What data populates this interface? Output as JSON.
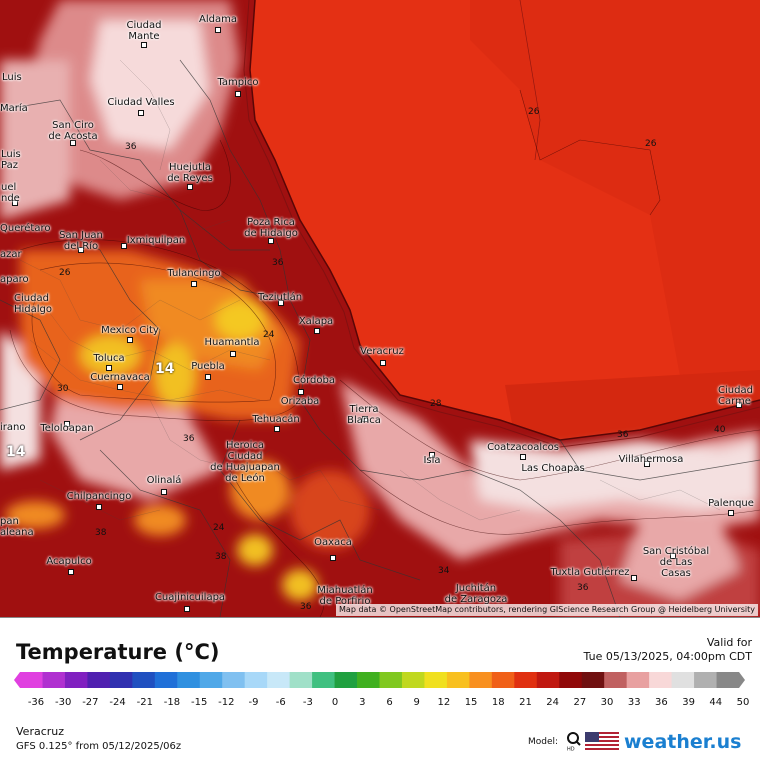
{
  "map": {
    "colors": {
      "sea": "#e43014",
      "land_hot": "#a01010",
      "land_warm": "#c82a12",
      "highland_orange": "#e8641e",
      "highland_yellow": "#f2c020",
      "cool_pink": "#e8b0b0",
      "cool_white": "#f4e4e4"
    },
    "cities": [
      {
        "name": "Ciudad\nMante"
      },
      {
        "name": "Aldama"
      },
      {
        "name": "Luis"
      },
      {
        "name": "María"
      },
      {
        "name": "Tampico"
      },
      {
        "name": "Ciudad Valles"
      },
      {
        "name": "San Ciro\nde Acosta"
      },
      {
        "name": "Luis\nPaz"
      },
      {
        "name": "Huejutla\nde Reyes"
      },
      {
        "name": "uel\nnde"
      },
      {
        "name": "Querétaro"
      },
      {
        "name": "San Juan\ndel Río"
      },
      {
        "name": "Ixmiquilpan"
      },
      {
        "name": "Poza Rica\nde Hidalgo"
      },
      {
        "name": "Tulancingo"
      },
      {
        "name": "Ciudad\nHidalgo"
      },
      {
        "name": "Teziutlán"
      },
      {
        "name": "Mexico City"
      },
      {
        "name": "Xalapa"
      },
      {
        "name": "Huamantla"
      },
      {
        "name": "Toluca"
      },
      {
        "name": "Cuernavaca"
      },
      {
        "name": "Puebla"
      },
      {
        "name": "Veracruz"
      },
      {
        "name": "Córdoba"
      },
      {
        "name": "Orizaba"
      },
      {
        "name": "Tierra\nBlanca"
      },
      {
        "name": "Tehuacán"
      },
      {
        "name": "Teloloapan"
      },
      {
        "name": "Heroica\nCiudad\nde Huajuapan\nde León"
      },
      {
        "name": "Ciudad\nCarme"
      },
      {
        "name": "Coatzacoalcos"
      },
      {
        "name": "Las Choapas"
      },
      {
        "name": "Villahermosa"
      },
      {
        "name": "Isla"
      },
      {
        "name": "Olinalá"
      },
      {
        "name": "Chilpancingo"
      },
      {
        "name": "Palenque"
      },
      {
        "name": "San Cristóbal\nde Las\nCasas"
      },
      {
        "name": "Oaxaca"
      },
      {
        "name": "Acapulco"
      },
      {
        "name": "Tuxtla Gutiérrez"
      },
      {
        "name": "Juchitán\nde Zaragoza"
      },
      {
        "name": "Miahuatlán\nde Porfirio"
      },
      {
        "name": "Cuajinicuilapa"
      },
      {
        "name": "pan\naleana"
      },
      {
        "name": "irano"
      },
      {
        "name": "azar"
      },
      {
        "name": "aparo"
      }
    ],
    "contour_labels": [
      "26",
      "26",
      "36",
      "26",
      "36",
      "24",
      "28",
      "36",
      "36",
      "40",
      "38",
      "24",
      "36",
      "34",
      "38",
      "36",
      "30"
    ],
    "big_values": [
      "14",
      "14"
    ],
    "attribution": "Map data © OpenStreetMap contributors, rendering GIScience Research Group @ Heidelberg University"
  },
  "legend": {
    "title": "Temperature (°C)",
    "valid_label": "Valid for",
    "valid_time": "Tue 05/13/2025, 04:00pm CDT",
    "ticks": [
      "-36",
      "-30",
      "-27",
      "-24",
      "-21",
      "-18",
      "-15",
      "-12",
      "-9",
      "-6",
      "-3",
      "0",
      "3",
      "6",
      "9",
      "12",
      "15",
      "18",
      "21",
      "24",
      "27",
      "30",
      "33",
      "36",
      "39",
      "44",
      "50"
    ],
    "colors": [
      "#e040e0",
      "#b030d0",
      "#8020c0",
      "#5020b0",
      "#3030b0",
      "#2050c0",
      "#2070d8",
      "#3090e0",
      "#50a8e8",
      "#80c0f0",
      "#a8d8f8",
      "#c8e8f8",
      "#a0e0c8",
      "#40c080",
      "#20a040",
      "#40b020",
      "#80c820",
      "#c0d820",
      "#f0e020",
      "#f8c020",
      "#f89020",
      "#f06018",
      "#e03010",
      "#c01810",
      "#900808",
      "#701010",
      "#c06060",
      "#e8a0a0",
      "#f8d8d8",
      "#e0e0e0",
      "#b0b0b0",
      "#888888"
    ],
    "region": "Veracruz",
    "model_run": "GFS 0.125° from  05/12/2025/06z",
    "model_label": "Model:",
    "brand": "weather.us"
  }
}
